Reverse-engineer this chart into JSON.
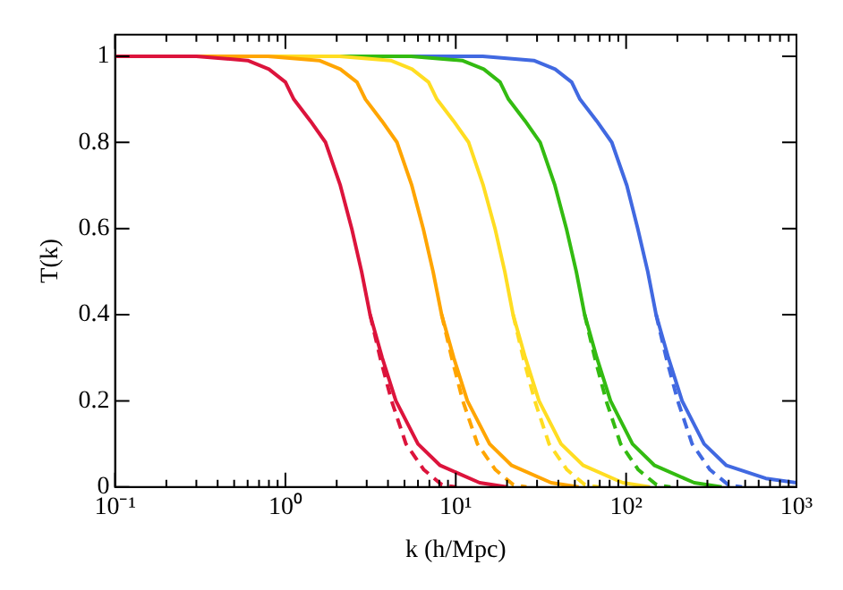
{
  "chart_data": {
    "type": "line",
    "xlabel": "k (h/Mpc)",
    "ylabel": "T(k)",
    "log": "x",
    "grid": false,
    "legend": false,
    "xlim": [
      0.1,
      1000
    ],
    "ylim": [
      0,
      1.05
    ],
    "xticks": [
      {
        "value": 0.1,
        "label": "10⁻¹"
      },
      {
        "value": 0.2,
        "label": null
      },
      {
        "value": 0.3,
        "label": null
      },
      {
        "value": 0.4,
        "label": null
      },
      {
        "value": 0.5,
        "label": null
      },
      {
        "value": 0.6,
        "label": null
      },
      {
        "value": 0.7,
        "label": null
      },
      {
        "value": 0.8,
        "label": null
      },
      {
        "value": 0.9,
        "label": null
      },
      {
        "value": 1,
        "label": "10⁰"
      },
      {
        "value": 2,
        "label": null
      },
      {
        "value": 3,
        "label": null
      },
      {
        "value": 4,
        "label": null
      },
      {
        "value": 5,
        "label": null
      },
      {
        "value": 6,
        "label": null
      },
      {
        "value": 7,
        "label": null
      },
      {
        "value": 8,
        "label": null
      },
      {
        "value": 9,
        "label": null
      },
      {
        "value": 10,
        "label": "10¹"
      },
      {
        "value": 20,
        "label": null
      },
      {
        "value": 30,
        "label": null
      },
      {
        "value": 40,
        "label": null
      },
      {
        "value": 50,
        "label": null
      },
      {
        "value": 60,
        "label": null
      },
      {
        "value": 70,
        "label": null
      },
      {
        "value": 80,
        "label": null
      },
      {
        "value": 90,
        "label": null
      },
      {
        "value": 100,
        "label": "10²"
      },
      {
        "value": 200,
        "label": null
      },
      {
        "value": 300,
        "label": null
      },
      {
        "value": 400,
        "label": null
      },
      {
        "value": 500,
        "label": null
      },
      {
        "value": 600,
        "label": null
      },
      {
        "value": 700,
        "label": null
      },
      {
        "value": 800,
        "label": null
      },
      {
        "value": 900,
        "label": null
      },
      {
        "value": 1000,
        "label": "10³"
      }
    ],
    "yticks": [
      0,
      0.2,
      0.4,
      0.6,
      0.8,
      1
    ],
    "series": [
      {
        "color": "#dc143c",
        "line_style": "solid",
        "x": [
          0.1,
          0.3,
          0.6,
          0.8,
          1,
          1.12,
          1.4,
          1.72,
          2.1,
          2.45,
          2.8,
          3.14,
          3.7,
          4.45,
          6.0,
          8.1,
          13.8,
          20
        ],
        "values": [
          1,
          1,
          0.99,
          0.97,
          0.94,
          0.9,
          0.85,
          0.8,
          0.7,
          0.6,
          0.5,
          0.4,
          0.3,
          0.2,
          0.1,
          0.05,
          0.01,
          0
        ]
      },
      {
        "color": "#ffa500",
        "line_style": "solid",
        "x": [
          0.1,
          0.79,
          1.58,
          2.1,
          2.63,
          2.95,
          3.68,
          4.52,
          5.52,
          6.44,
          7.36,
          8.26,
          9.73,
          11.7,
          15.8,
          21.3,
          36.3,
          52.6
        ],
        "values": [
          1,
          1,
          0.99,
          0.97,
          0.94,
          0.9,
          0.85,
          0.8,
          0.7,
          0.6,
          0.5,
          0.4,
          0.3,
          0.2,
          0.1,
          0.05,
          0.01,
          0
        ]
      },
      {
        "color": "#ffdd22",
        "line_style": "solid",
        "x": [
          0.1,
          2.08,
          4.15,
          5.54,
          6.92,
          7.75,
          9.69,
          11.9,
          14.5,
          17.0,
          19.4,
          21.7,
          25.6,
          30.8,
          41.5,
          56.1,
          95.5,
          138
        ],
        "values": [
          1,
          1,
          0.99,
          0.97,
          0.94,
          0.9,
          0.85,
          0.8,
          0.7,
          0.6,
          0.5,
          0.4,
          0.3,
          0.2,
          0.1,
          0.05,
          0.01,
          0
        ]
      },
      {
        "color": "#33bb11",
        "line_style": "solid",
        "x": [
          0.1,
          5.46,
          10.9,
          14.6,
          18.2,
          20.4,
          25.5,
          31.3,
          38.2,
          44.6,
          51.0,
          57.1,
          67.3,
          81.0,
          109,
          147,
          251,
          364
        ],
        "values": [
          1,
          1,
          0.99,
          0.97,
          0.94,
          0.9,
          0.85,
          0.8,
          0.7,
          0.6,
          0.5,
          0.4,
          0.3,
          0.2,
          0.1,
          0.05,
          0.01,
          0
        ]
      },
      {
        "color": "#4169e1",
        "line_style": "solid",
        "x": [
          0.1,
          14.4,
          28.7,
          38.3,
          47.9,
          53.6,
          67.1,
          82.4,
          101,
          117,
          134,
          150,
          177,
          213,
          287,
          388,
          661,
          1000
        ],
        "values": [
          1,
          1,
          0.99,
          0.97,
          0.94,
          0.9,
          0.85,
          0.8,
          0.7,
          0.6,
          0.5,
          0.4,
          0.3,
          0.2,
          0.1,
          0.05,
          0.02,
          0.01
        ]
      },
      {
        "color": "#dc143c",
        "line_style": "dashed",
        "x": [
          3.14,
          3.6,
          4.2,
          5.1,
          6.5,
          8.3,
          10
        ],
        "values": [
          0.4,
          0.3,
          0.2,
          0.1,
          0.04,
          0.005,
          0
        ]
      },
      {
        "color": "#ffa500",
        "line_style": "dashed",
        "x": [
          8.26,
          9.47,
          11.0,
          13.4,
          17.1,
          21.8,
          26
        ],
        "values": [
          0.4,
          0.3,
          0.2,
          0.1,
          0.04,
          0.005,
          0
        ]
      },
      {
        "color": "#ffdd22",
        "line_style": "dashed",
        "x": [
          21.7,
          24.9,
          29.1,
          35.3,
          45.0,
          57.4,
          69
        ],
        "values": [
          0.4,
          0.3,
          0.2,
          0.1,
          0.04,
          0.005,
          0
        ]
      },
      {
        "color": "#33bb11",
        "line_style": "dashed",
        "x": [
          57.1,
          65.5,
          76.4,
          92.8,
          118,
          151,
          182
        ],
        "values": [
          0.4,
          0.3,
          0.2,
          0.1,
          0.04,
          0.005,
          0
        ]
      },
      {
        "color": "#4169e1",
        "line_style": "dashed",
        "x": [
          150,
          172,
          201,
          244,
          311,
          398,
          479
        ],
        "values": [
          0.4,
          0.3,
          0.2,
          0.1,
          0.04,
          0.005,
          0
        ]
      }
    ]
  }
}
